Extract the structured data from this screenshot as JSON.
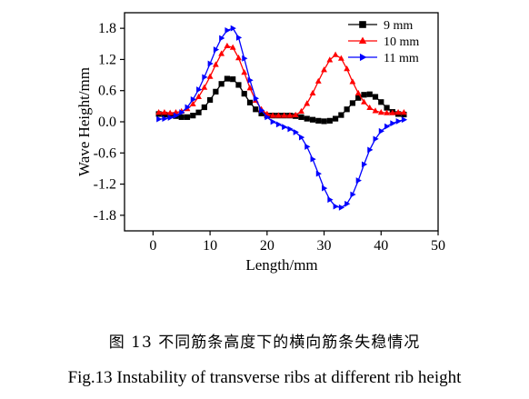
{
  "chart_data": {
    "type": "line",
    "xlabel": "Length/mm",
    "ylabel": "Wave Height/mm",
    "xlim": [
      -5,
      50
    ],
    "ylim": [
      -2.1,
      2.1
    ],
    "xticks": [
      0,
      10,
      20,
      30,
      40,
      50
    ],
    "xtick_labels": [
      "0",
      "10",
      "20",
      "30",
      "40",
      "50"
    ],
    "yticks": [
      -1.8,
      -1.2,
      -0.6,
      0.0,
      0.6,
      1.2,
      1.8
    ],
    "ytick_labels": [
      "-1.8",
      "-1.2",
      "-0.6",
      "0.0",
      "0.6",
      "1.2",
      "1.8"
    ],
    "grid": false,
    "legend_position": "top-right",
    "x": [
      1,
      2,
      3,
      4,
      5,
      6,
      7,
      8,
      9,
      10,
      11,
      12,
      13,
      14,
      15,
      16,
      17,
      18,
      19,
      20,
      21,
      22,
      23,
      24,
      25,
      26,
      27,
      28,
      29,
      30,
      31,
      32,
      33,
      34,
      35,
      36,
      37,
      38,
      39,
      40,
      41,
      42,
      43,
      44
    ],
    "series": [
      {
        "name": "9 mm",
        "color": "#000000",
        "marker": "square",
        "values": [
          0.15,
          0.14,
          0.13,
          0.11,
          0.09,
          0.09,
          0.12,
          0.18,
          0.28,
          0.42,
          0.58,
          0.73,
          0.83,
          0.82,
          0.71,
          0.54,
          0.37,
          0.24,
          0.16,
          0.12,
          0.12,
          0.12,
          0.12,
          0.12,
          0.11,
          0.09,
          0.06,
          0.04,
          0.02,
          0.01,
          0.02,
          0.06,
          0.13,
          0.24,
          0.36,
          0.46,
          0.52,
          0.53,
          0.48,
          0.38,
          0.27,
          0.19,
          0.15,
          0.14
        ]
      },
      {
        "name": "10 mm",
        "color": "#ff0000",
        "marker": "triangle-up",
        "values": [
          0.18,
          0.18,
          0.17,
          0.18,
          0.2,
          0.25,
          0.34,
          0.48,
          0.66,
          0.87,
          1.1,
          1.31,
          1.46,
          1.43,
          1.23,
          0.95,
          0.65,
          0.41,
          0.24,
          0.15,
          0.12,
          0.12,
          0.12,
          0.12,
          0.13,
          0.2,
          0.35,
          0.55,
          0.78,
          1.0,
          1.19,
          1.29,
          1.22,
          1.02,
          0.77,
          0.55,
          0.38,
          0.27,
          0.21,
          0.18,
          0.17,
          0.17,
          0.18,
          0.18
        ]
      },
      {
        "name": "11 mm",
        "color": "#0000ff",
        "marker": "triangle-right",
        "values": [
          0.05,
          0.06,
          0.08,
          0.12,
          0.18,
          0.28,
          0.43,
          0.62,
          0.86,
          1.12,
          1.39,
          1.61,
          1.76,
          1.8,
          1.62,
          1.22,
          0.8,
          0.45,
          0.22,
          0.09,
          0.0,
          -0.05,
          -0.1,
          -0.14,
          -0.2,
          -0.3,
          -0.48,
          -0.72,
          -1.0,
          -1.28,
          -1.5,
          -1.63,
          -1.65,
          -1.58,
          -1.4,
          -1.13,
          -0.82,
          -0.54,
          -0.33,
          -0.18,
          -0.09,
          -0.03,
          0.01,
          0.04
        ]
      }
    ]
  },
  "caption": {
    "zh": "图 13  不同筋条高度下的横向筋条失稳情况",
    "en": "Fig.13    Instability of transverse ribs at different rib height"
  }
}
